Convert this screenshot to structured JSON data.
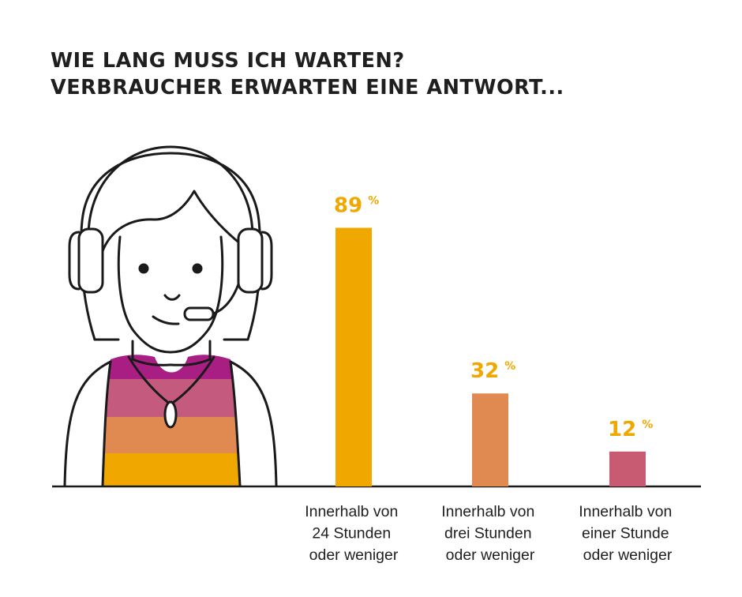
{
  "title_lines": [
    "WIE LANG MUSS ICH WARTEN?",
    "VERBRAUCHER ERWARTEN EINE ANTWORT..."
  ],
  "chart_data": {
    "type": "bar",
    "title": "WIE LANG MUSS ICH WARTEN? VERBRAUCHER ERWARTEN EINE ANTWORT...",
    "xlabel": "",
    "ylabel": "",
    "ylim": [
      0,
      100
    ],
    "grid": false,
    "value_unit": "%",
    "categories": [
      [
        "Innerhalb von",
        "24 Stunden",
        "oder weniger"
      ],
      [
        "Innerhalb von",
        "drei Stunden",
        "oder weniger"
      ],
      [
        "Innerhalb von",
        "einer Stunde",
        "oder weniger"
      ]
    ],
    "values": [
      89,
      32,
      12
    ],
    "bar_colors": [
      "#f0a800",
      "#e08a52",
      "#c85a72"
    ],
    "value_label_color": "#f0a800"
  },
  "colors": {
    "line": "#1a1a1a",
    "shirt_stripes": [
      "#a81e83",
      "#c45a7e",
      "#e08a52",
      "#f0a800"
    ]
  },
  "icons": {
    "person": "agent-with-headset-icon"
  }
}
